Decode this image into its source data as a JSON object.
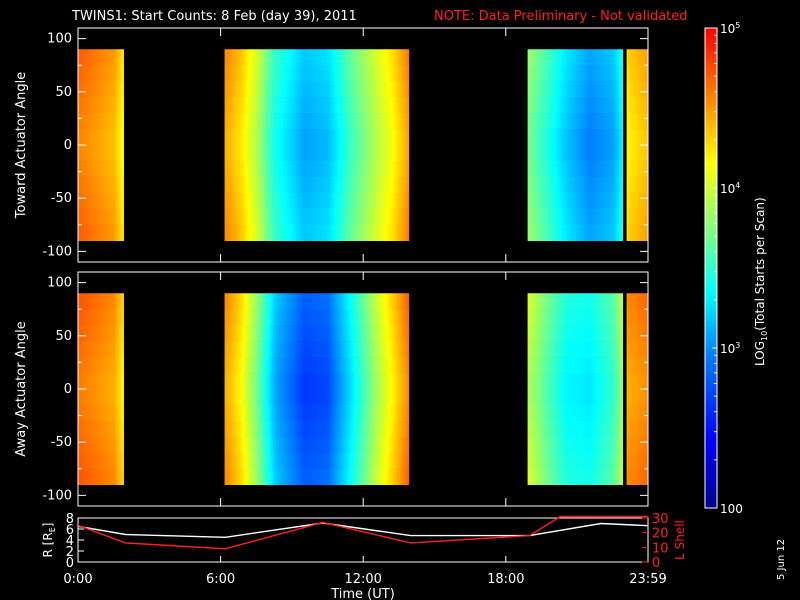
{
  "header": {
    "title": "TWINS1: Start Counts:  8 Feb (day  39), 2011",
    "note": "NOTE: Data Preliminary - Not validated"
  },
  "footer": {
    "date_stamp": "5 Jun 12"
  },
  "colors": {
    "background": "#000000",
    "note": "#ff2020",
    "orbit_l_shell": "#ff2020",
    "orbit_r": "#ffffff",
    "colormap": [
      "#00008f",
      "#0000ff",
      "#0080ff",
      "#00ffff",
      "#80ff80",
      "#ffff00",
      "#ff8000",
      "#ff0000"
    ]
  },
  "chart_data": [
    {
      "type": "heatmap",
      "ylabel": "Toward Actuator Angle",
      "ylim": [
        -110,
        110
      ],
      "yticks": [
        -100,
        -50,
        0,
        50,
        100
      ],
      "angle_range": [
        -90,
        90
      ],
      "data_intervals": [
        {
          "start": "0:00",
          "end": "1:55"
        },
        {
          "start": "6:10",
          "end": "13:55"
        },
        {
          "start": "18:55",
          "end": "22:55"
        },
        {
          "start": "23:05",
          "end": "23:59"
        }
      ],
      "time_profile": [
        [
          0,
          0.85
        ],
        [
          1.5,
          0.78
        ],
        [
          1.85,
          0.7
        ],
        [
          6.2,
          0.8
        ],
        [
          6.8,
          0.74
        ],
        [
          7.5,
          0.62
        ],
        [
          8.2,
          0.45
        ],
        [
          9.5,
          0.32
        ],
        [
          10.5,
          0.35
        ],
        [
          11.5,
          0.5
        ],
        [
          12.5,
          0.62
        ],
        [
          13.2,
          0.7
        ],
        [
          13.9,
          0.82
        ],
        [
          18.95,
          0.55
        ],
        [
          19.8,
          0.45
        ],
        [
          20.5,
          0.36
        ],
        [
          21.5,
          0.28
        ],
        [
          22.5,
          0.32
        ],
        [
          22.9,
          0.42
        ],
        [
          23.1,
          0.72
        ],
        [
          23.99,
          0.78
        ]
      ]
    },
    {
      "type": "heatmap",
      "ylabel": "Away Actuator Angle",
      "ylim": [
        -110,
        110
      ],
      "yticks": [
        -100,
        -50,
        0,
        50,
        100
      ],
      "angle_range": [
        -90,
        90
      ],
      "data_intervals": [
        {
          "start": "0:00",
          "end": "1:55"
        },
        {
          "start": "6:10",
          "end": "13:55"
        },
        {
          "start": "18:55",
          "end": "22:55"
        },
        {
          "start": "23:05",
          "end": "23:59"
        }
      ],
      "time_profile": [
        [
          0,
          0.86
        ],
        [
          1.5,
          0.8
        ],
        [
          1.85,
          0.72
        ],
        [
          6.2,
          0.8
        ],
        [
          6.8,
          0.72
        ],
        [
          7.5,
          0.55
        ],
        [
          8.3,
          0.32
        ],
        [
          9.5,
          0.2
        ],
        [
          10.5,
          0.22
        ],
        [
          11.5,
          0.4
        ],
        [
          12.5,
          0.6
        ],
        [
          13.2,
          0.72
        ],
        [
          13.9,
          0.85
        ],
        [
          18.95,
          0.62
        ],
        [
          19.8,
          0.5
        ],
        [
          20.5,
          0.42
        ],
        [
          21.5,
          0.4
        ],
        [
          22.5,
          0.48
        ],
        [
          22.9,
          0.6
        ],
        [
          23.1,
          0.8
        ],
        [
          23.99,
          0.84
        ]
      ]
    },
    {
      "type": "line",
      "xlabel": "Time (UT)",
      "xticks": [
        "0:00",
        "6:00",
        "12:00",
        "18:00",
        "23:59"
      ],
      "xtick_hours": [
        0,
        6,
        12,
        18,
        23.983
      ],
      "ylabel_left": "R [R",
      "ylabel_left_sub": "E",
      "ylabel_left_close": "]",
      "ylim_left": [
        0,
        8
      ],
      "yticks_left": [
        0,
        2,
        4,
        6,
        8
      ],
      "ylabel_right": "L Shell",
      "ylim_right": [
        0,
        30
      ],
      "yticks_right": [
        0,
        10,
        20,
        30
      ],
      "series": [
        {
          "axis": "left",
          "x": [
            0,
            2,
            6.2,
            10.3,
            14,
            19,
            22,
            23.99
          ],
          "y": [
            6.5,
            5.0,
            4.5,
            7.1,
            4.8,
            4.8,
            7.0,
            6.6
          ]
        },
        {
          "axis": "right",
          "x": [
            0,
            2,
            6.2,
            10.3,
            14,
            19,
            20.3,
            23.99
          ],
          "y": [
            25,
            13,
            9,
            27,
            13,
            18,
            31,
            31
          ]
        }
      ]
    }
  ],
  "colorbar": {
    "label_main": "LOG",
    "label_sub": "10",
    "label_rest": "(Total Starts per Scan)",
    "ticks": [
      {
        "value": 100,
        "base": "100",
        "exp": ""
      },
      {
        "value": 1000,
        "base": "10",
        "exp": "3"
      },
      {
        "value": 10000,
        "base": "10",
        "exp": "4"
      },
      {
        "value": 100000,
        "base": "10",
        "exp": "5"
      }
    ],
    "range": [
      100,
      100000
    ]
  }
}
